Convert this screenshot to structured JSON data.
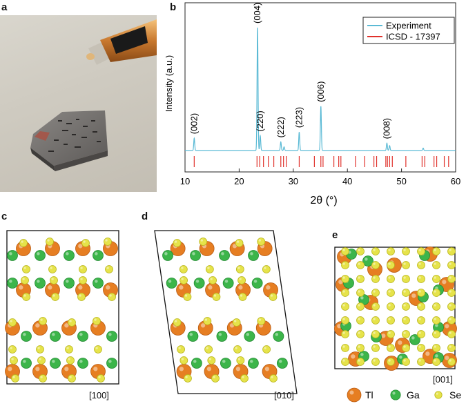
{
  "panels": {
    "a": "a",
    "b": "b",
    "c": "c",
    "d": "d",
    "e": "e"
  },
  "chart_data": {
    "type": "line",
    "xlabel": "2θ (°)",
    "ylabel": "Intensity (a.u.)",
    "xlim": [
      10,
      60
    ],
    "x_ticks": [
      "10",
      "20",
      "30",
      "40",
      "50",
      "60"
    ],
    "legend_position": "top-right",
    "series": [
      {
        "name": "Experiment",
        "color": "#5bbad5",
        "peaks": [
          {
            "x": 11.7,
            "y": 0.1
          },
          {
            "x": 23.4,
            "y": 1.0
          },
          {
            "x": 23.9,
            "y": 0.12
          },
          {
            "x": 27.7,
            "y": 0.07
          },
          {
            "x": 28.3,
            "y": 0.03
          },
          {
            "x": 31.1,
            "y": 0.15
          },
          {
            "x": 35.1,
            "y": 0.36
          },
          {
            "x": 47.3,
            "y": 0.06
          },
          {
            "x": 47.8,
            "y": 0.04
          },
          {
            "x": 54.0,
            "y": 0.02
          }
        ]
      },
      {
        "name": "ICSD - 17397",
        "color": "#e0312b",
        "ticks": [
          11.7,
          23.3,
          23.8,
          24.5,
          25.4,
          26.4,
          27.7,
          28.2,
          28.7,
          31.1,
          33.9,
          35.1,
          35.5,
          37.5,
          38.4,
          38.8,
          41.5,
          43.2,
          44.9,
          45.4,
          47.1,
          47.4,
          47.8,
          48.3,
          50.8,
          53.8,
          54.3,
          56.0,
          56.5,
          57.9,
          58.7
        ]
      }
    ],
    "annotations": [
      {
        "label": "(002)",
        "x": 11.7
      },
      {
        "label": "(004)",
        "x": 23.4
      },
      {
        "label": "(220)",
        "x": 23.9
      },
      {
        "label": "(222)",
        "x": 27.7
      },
      {
        "label": "(223)",
        "x": 31.1
      },
      {
        "label": "(006)",
        "x": 35.1
      },
      {
        "label": "(008)",
        "x": 47.3
      }
    ]
  },
  "zones": {
    "c": "[100]",
    "d": "[010]",
    "e": "[001]"
  },
  "legend_atoms": [
    {
      "label": "Tl",
      "color": "#e67e22"
    },
    {
      "label": "Ga",
      "color": "#3cb54a"
    },
    {
      "label": "Se",
      "color": "#e6e34a"
    }
  ]
}
